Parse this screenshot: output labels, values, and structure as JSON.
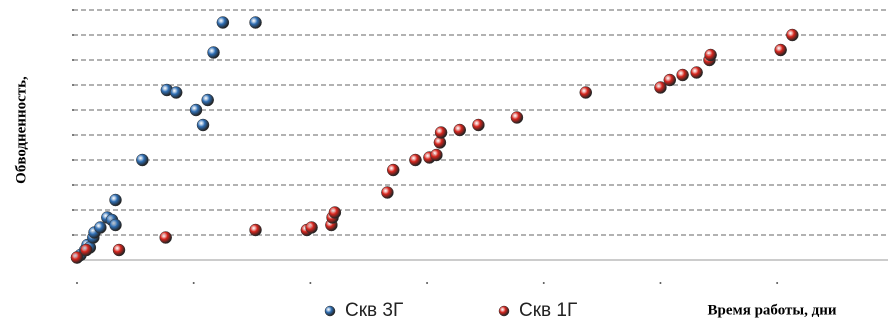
{
  "chart_data": {
    "type": "scatter",
    "x_label": "Время работы, дни",
    "y_label": "Обводненность,",
    "xlim": [
      0,
      695
    ],
    "ylim": [
      0,
      100
    ],
    "xticks": [
      0,
      100,
      200,
      300,
      400,
      500,
      600
    ],
    "yticks": [
      0,
      10,
      20,
      30,
      40,
      50,
      60,
      70,
      80,
      90,
      100
    ],
    "grid": true,
    "series": [
      {
        "name": "Скв 3Г",
        "color": "#2f6fb5",
        "x": [
          0,
          3,
          7,
          9,
          11,
          14,
          15,
          20,
          26,
          30,
          33,
          33,
          56,
          77,
          85,
          102,
          108,
          112,
          117,
          125,
          153
        ],
        "y": [
          1,
          2,
          4,
          6,
          5,
          9,
          11,
          13,
          17,
          16,
          14,
          24,
          40,
          68,
          67,
          60,
          54,
          64,
          83,
          95,
          95
        ]
      },
      {
        "name": "Скв 1Г",
        "color": "#d8261e",
        "x": [
          0,
          8,
          36,
          76,
          153,
          197,
          201,
          218,
          219,
          221,
          266,
          271,
          290,
          302,
          308,
          311,
          312,
          328,
          344,
          377,
          436,
          500,
          508,
          519,
          531,
          542,
          543,
          603,
          613
        ],
        "y": [
          1,
          4,
          4,
          9,
          12,
          12,
          13,
          14,
          17,
          19,
          27,
          36,
          40,
          41,
          42,
          47,
          51,
          52,
          54,
          57,
          67,
          69,
          72,
          74,
          75,
          80,
          82,
          84,
          90
        ]
      }
    ]
  }
}
